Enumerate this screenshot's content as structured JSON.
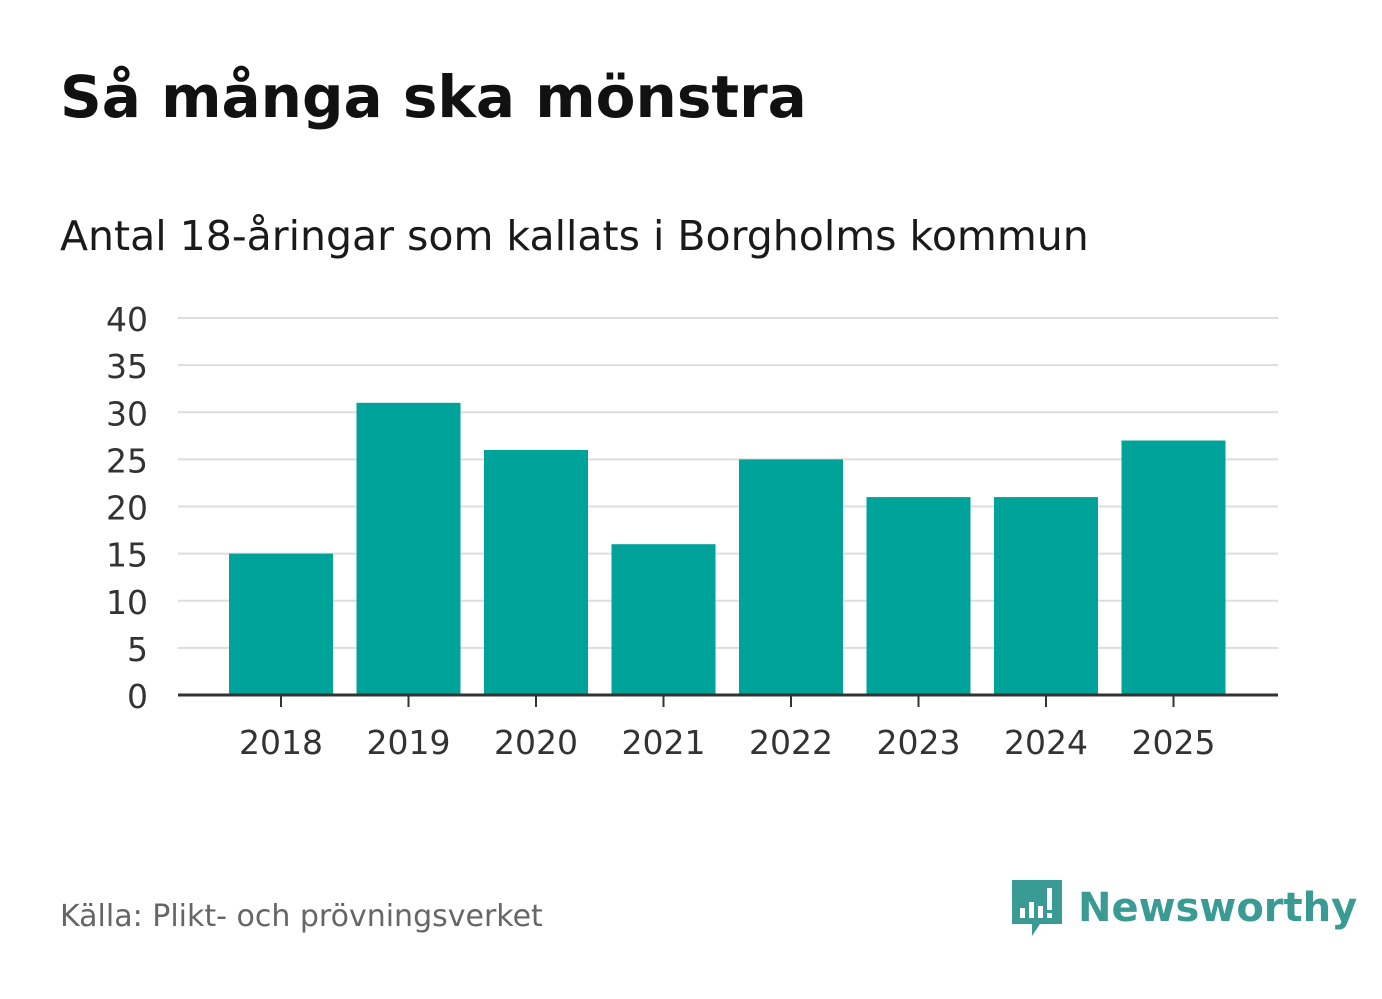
{
  "title": "Så många ska mönstra",
  "subtitle": "Antal 18-åringar som kallats i Borgholms kommun",
  "source": "Källa: Plikt- och prövningsverket",
  "brand": {
    "name": "Newsworthy",
    "color": "#3a9a94",
    "icon": "chat-bubble-bar-chart-icon"
  },
  "colors": {
    "bar": "#00a39a",
    "grid": "#dddddd",
    "axis": "#333333"
  },
  "chart_data": {
    "type": "bar",
    "title": "Så många ska mönstra",
    "subtitle": "Antal 18-åringar som kallats i Borgholms kommun",
    "categories": [
      "2018",
      "2019",
      "2020",
      "2021",
      "2022",
      "2023",
      "2024",
      "2025"
    ],
    "values": [
      15,
      31,
      26,
      16,
      25,
      21,
      21,
      27
    ],
    "yticks": [
      0,
      5,
      10,
      15,
      20,
      25,
      30,
      35,
      40
    ],
    "ylim": [
      0,
      40
    ],
    "xlabel": "",
    "ylabel": "",
    "grid": true,
    "legend": "none"
  }
}
